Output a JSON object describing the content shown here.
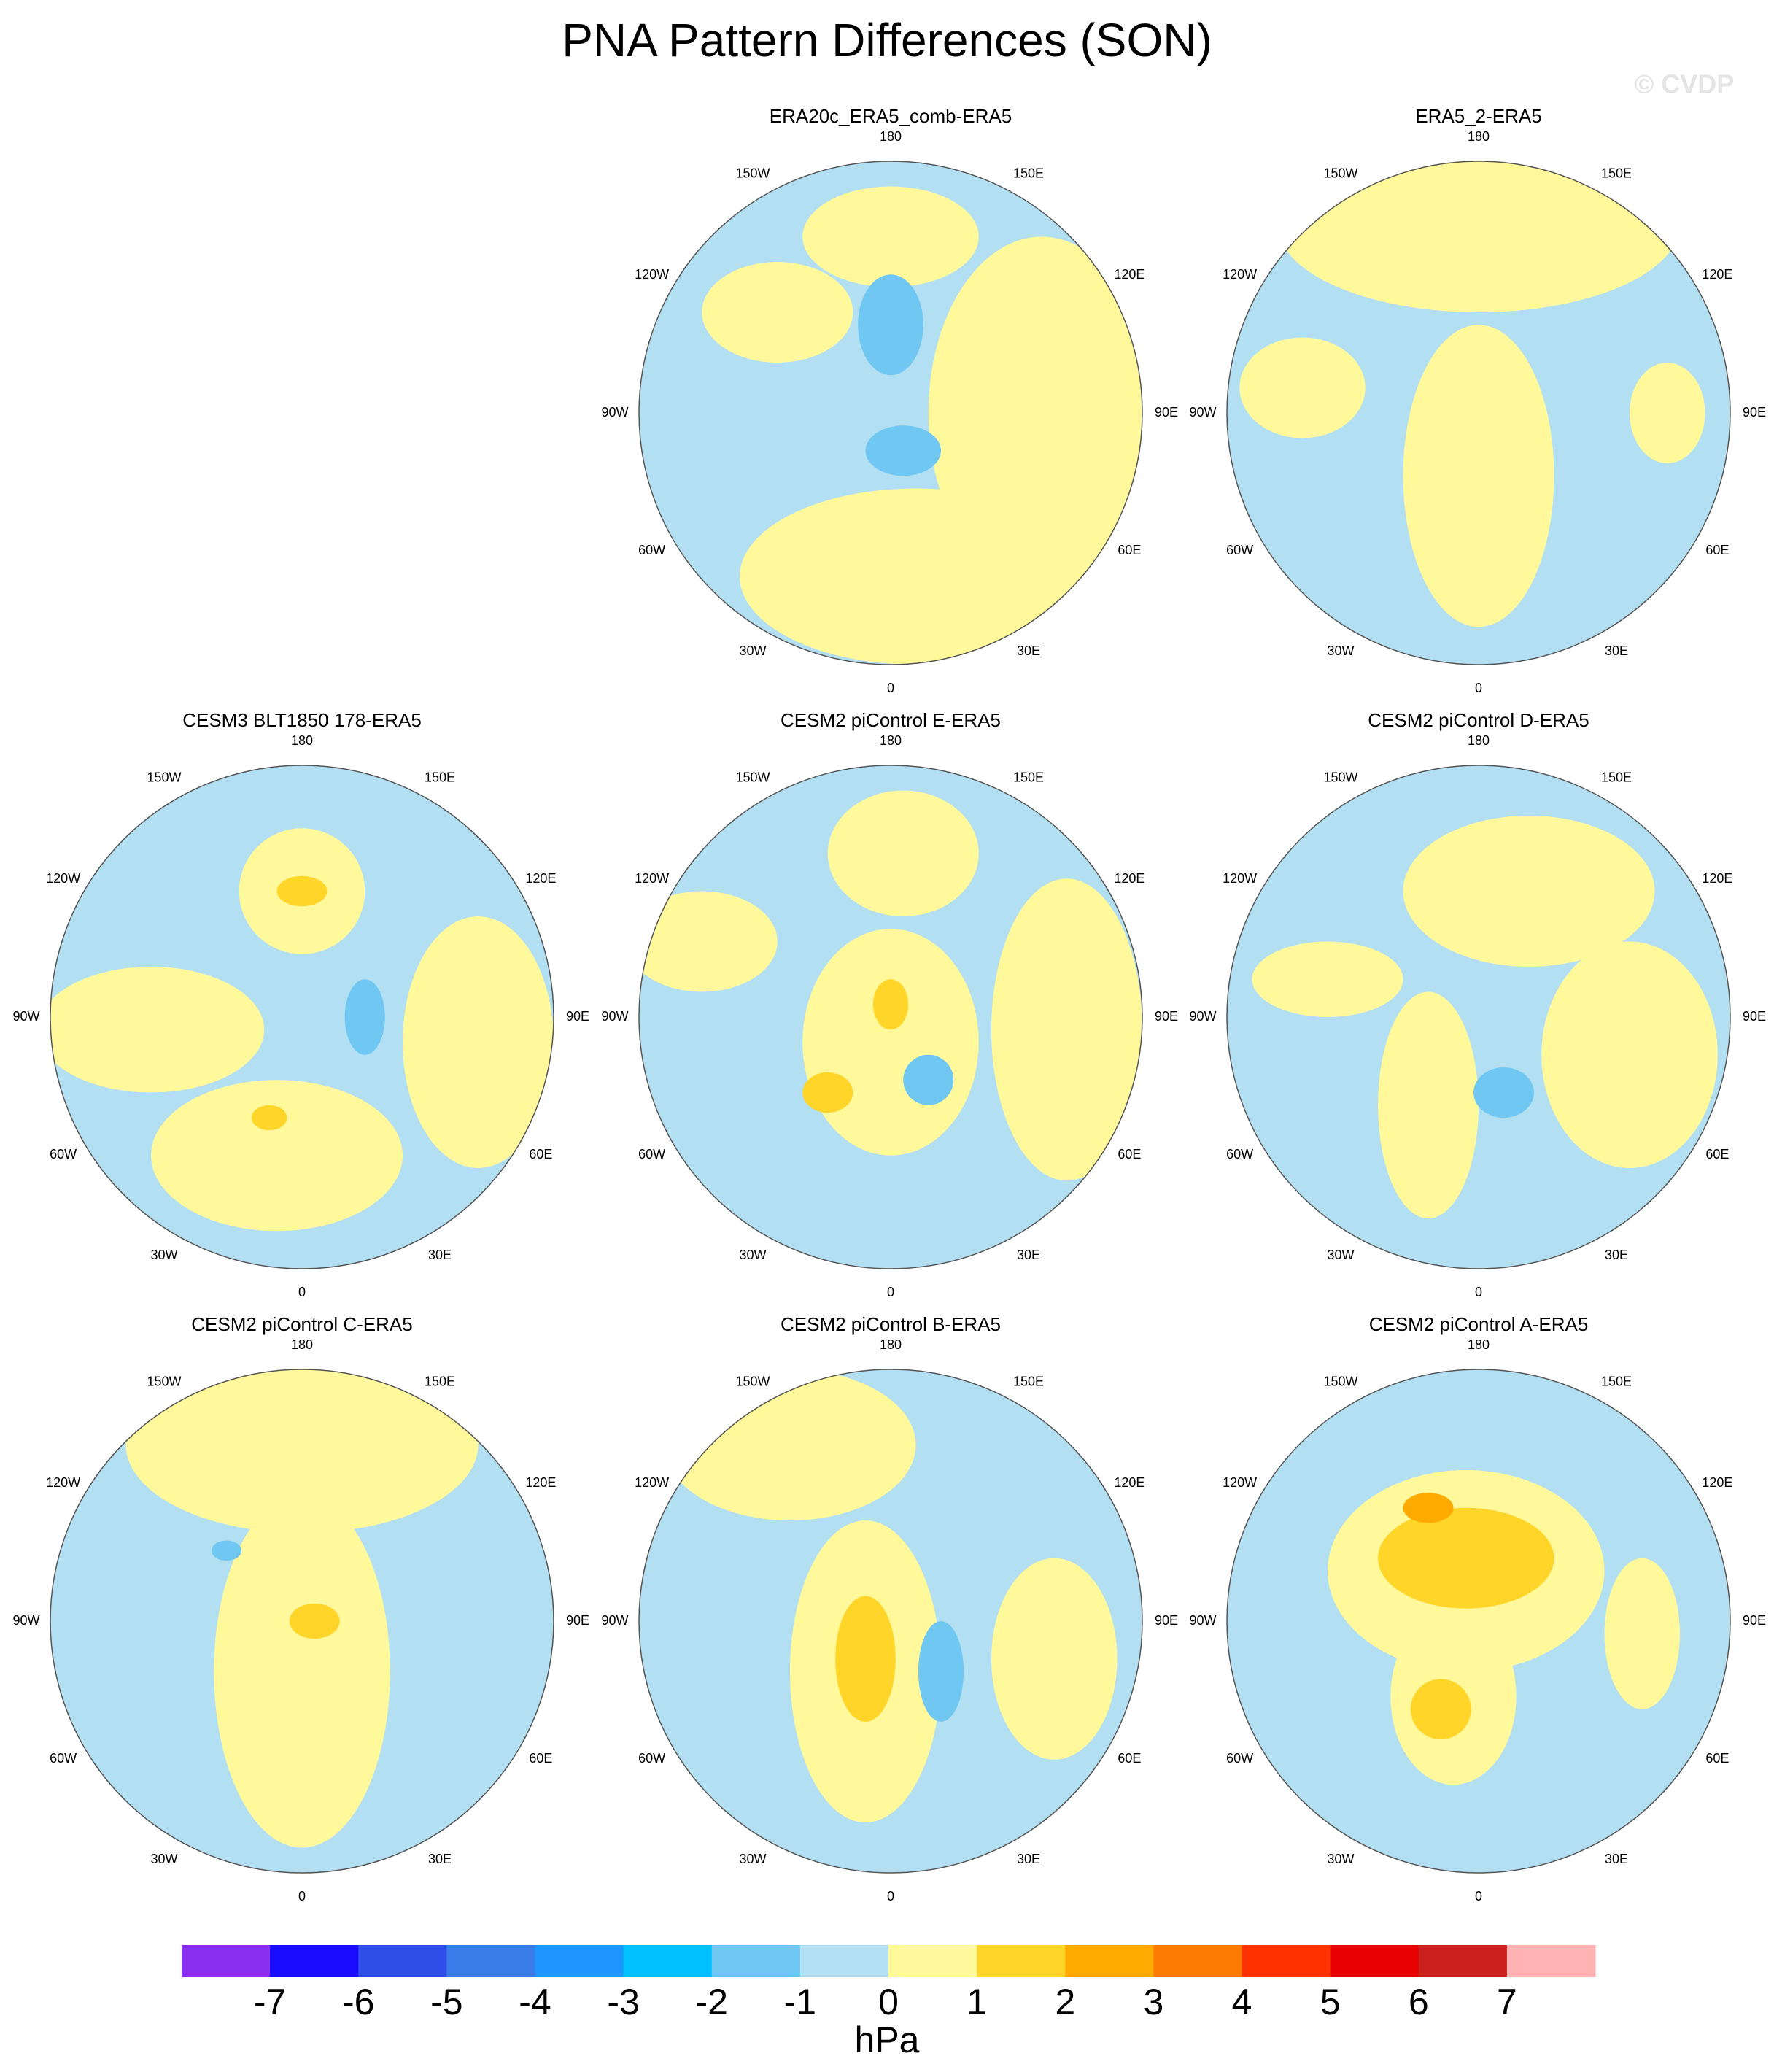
{
  "title": "PNA Pattern Differences (SON)",
  "watermark": "© CVDP",
  "panels": [
    {
      "title": "ERA20c_ERA5_comb-ERA5"
    },
    {
      "title": "ERA5_2-ERA5"
    },
    {
      "title": "CESM3 BLT1850 178-ERA5"
    },
    {
      "title": "CESM2 piControl E-ERA5"
    },
    {
      "title": "CESM2 piControl D-ERA5"
    },
    {
      "title": "CESM2 piControl C-ERA5"
    },
    {
      "title": "CESM2 piControl B-ERA5"
    },
    {
      "title": "CESM2 piControl A-ERA5"
    }
  ],
  "lon_labels": [
    "180",
    "150E",
    "120E",
    "90E",
    "60E",
    "30E",
    "0",
    "30W",
    "60W",
    "90W",
    "120W",
    "150W"
  ],
  "colorbar": {
    "colors": [
      "#8a2ff0",
      "#1a0dff",
      "#2e4de8",
      "#3a7de8",
      "#1e96ff",
      "#00c0ff",
      "#70c8f2",
      "#b3dff2",
      "#fff99b",
      "#ffd52a",
      "#ffaa00",
      "#ff7a00",
      "#ff3300",
      "#e60000",
      "#cc1f1f",
      "#ffb3b3"
    ],
    "ticks": [
      -7,
      -6,
      -5,
      -4,
      -3,
      -2,
      -1,
      0,
      1,
      2,
      3,
      4,
      5,
      6,
      7
    ],
    "label": "hPa"
  }
}
